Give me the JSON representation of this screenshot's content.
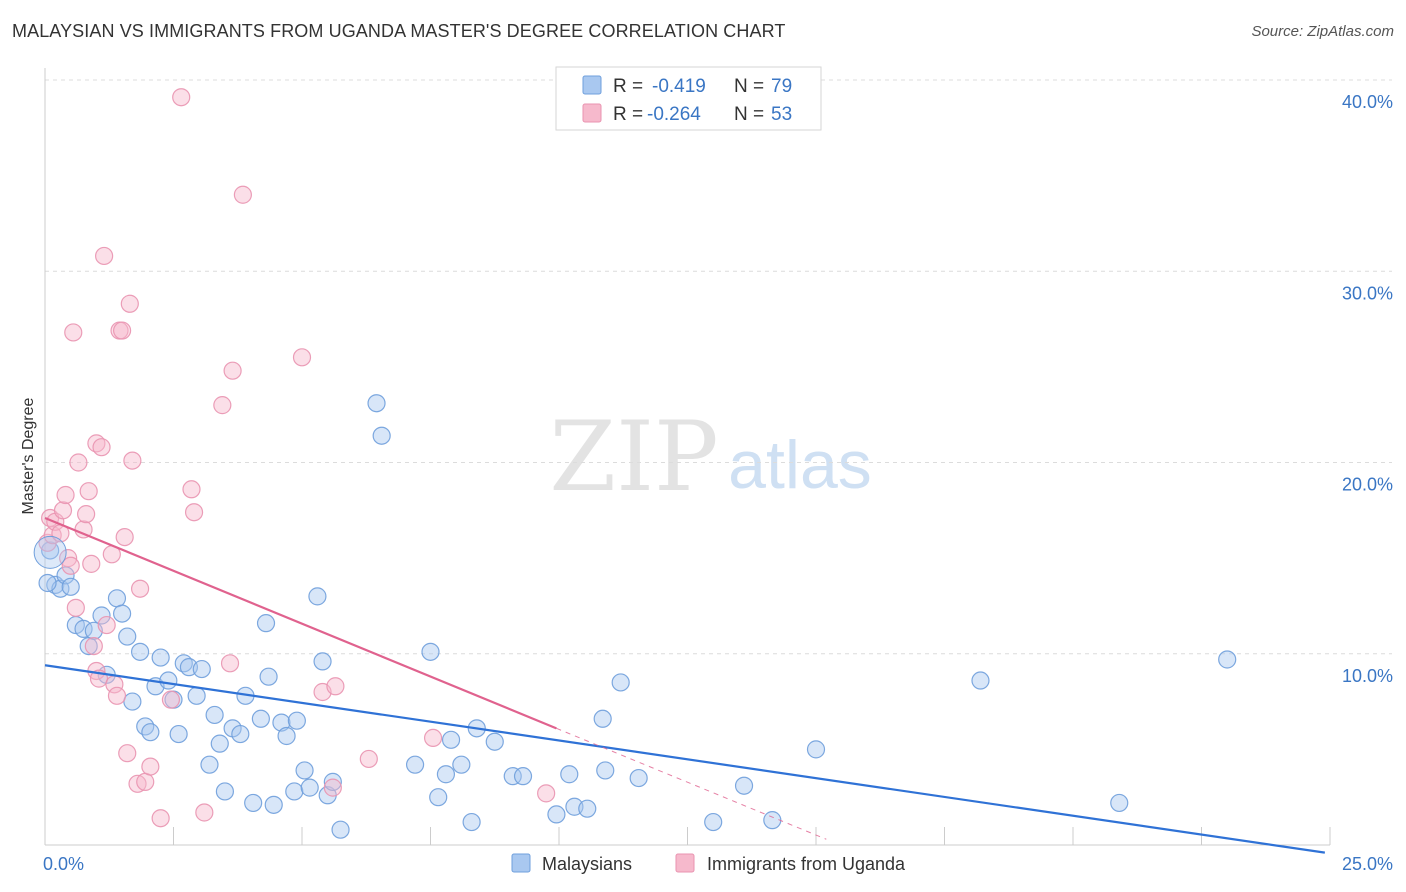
{
  "title": "MALAYSIAN VS IMMIGRANTS FROM UGANDA MASTER'S DEGREE CORRELATION CHART",
  "source": "Source: ZipAtlas.com",
  "watermark": {
    "zip": "ZIP",
    "atlas": "atlas"
  },
  "colors": {
    "blue_fill": "#a9c8f0",
    "blue_stroke": "#6f9fdc",
    "blue_line": "#2f72d6",
    "pink_fill": "#f6b9cc",
    "pink_stroke": "#e993b0",
    "pink_line": "#e0628e",
    "axis_text": "#3a76c4",
    "grid": "#dcdcdc"
  },
  "legend": {
    "r_label": "R =",
    "n_label": "N =",
    "rows": [
      {
        "series": "Malaysians",
        "r": "-0.419",
        "n": "79"
      },
      {
        "series": "Immigrants from Uganda",
        "r": "-0.264",
        "n": "53"
      }
    ]
  },
  "chart_data": {
    "type": "scatter",
    "xlabel": "",
    "ylabel": "Master's Degree",
    "xlim": [
      0,
      25
    ],
    "ylim": [
      0,
      40
    ],
    "x_tick_labels": [
      "0.0%",
      "25.0%"
    ],
    "y_ticks": [
      10,
      20,
      30,
      40
    ],
    "y_tick_labels": [
      "10.0%",
      "20.0%",
      "30.0%",
      "40.0%"
    ],
    "grid": true,
    "series": [
      {
        "name": "Malaysians",
        "color": "#6f9fdc",
        "trend": {
          "x": [
            0,
            24.9
          ],
          "y": [
            9.4,
            -0.4
          ],
          "dashed_to": null
        },
        "points": [
          [
            0.1,
            15.4
          ],
          [
            0.2,
            13.6
          ],
          [
            0.3,
            13.4
          ],
          [
            0.4,
            14.1
          ],
          [
            0.5,
            13.5
          ],
          [
            0.6,
            11.5
          ],
          [
            0.75,
            11.3
          ],
          [
            0.85,
            10.4
          ],
          [
            0.95,
            11.2
          ],
          [
            1.1,
            12.0
          ],
          [
            1.2,
            8.9
          ],
          [
            1.4,
            12.9
          ],
          [
            1.5,
            12.1
          ],
          [
            1.6,
            10.9
          ],
          [
            1.7,
            7.5
          ],
          [
            1.85,
            10.1
          ],
          [
            1.95,
            6.2
          ],
          [
            2.05,
            5.9
          ],
          [
            2.15,
            8.3
          ],
          [
            2.25,
            9.8
          ],
          [
            2.4,
            8.6
          ],
          [
            2.5,
            7.6
          ],
          [
            2.6,
            5.8
          ],
          [
            2.7,
            9.5
          ],
          [
            2.8,
            9.3
          ],
          [
            2.95,
            7.8
          ],
          [
            3.05,
            9.2
          ],
          [
            3.2,
            4.2
          ],
          [
            3.3,
            6.8
          ],
          [
            3.4,
            5.3
          ],
          [
            3.5,
            2.8
          ],
          [
            3.65,
            6.1
          ],
          [
            3.8,
            5.8
          ],
          [
            3.9,
            7.8
          ],
          [
            4.05,
            2.2
          ],
          [
            4.2,
            6.6
          ],
          [
            4.3,
            11.6
          ],
          [
            4.35,
            8.8
          ],
          [
            4.45,
            2.1
          ],
          [
            4.6,
            6.4
          ],
          [
            4.7,
            5.7
          ],
          [
            4.85,
            2.8
          ],
          [
            4.9,
            6.5
          ],
          [
            5.05,
            3.9
          ],
          [
            5.15,
            3.0
          ],
          [
            5.3,
            13.0
          ],
          [
            5.4,
            9.6
          ],
          [
            5.5,
            2.6
          ],
          [
            5.6,
            3.3
          ],
          [
            5.75,
            0.8
          ],
          [
            6.45,
            23.1
          ],
          [
            6.55,
            21.4
          ],
          [
            7.2,
            4.2
          ],
          [
            7.5,
            10.1
          ],
          [
            7.65,
            2.5
          ],
          [
            7.8,
            3.7
          ],
          [
            7.9,
            5.5
          ],
          [
            8.1,
            4.2
          ],
          [
            8.3,
            1.2
          ],
          [
            8.4,
            6.1
          ],
          [
            8.75,
            5.4
          ],
          [
            9.1,
            3.6
          ],
          [
            9.3,
            3.6
          ],
          [
            9.95,
            1.6
          ],
          [
            10.2,
            3.7
          ],
          [
            10.3,
            2.0
          ],
          [
            10.55,
            1.9
          ],
          [
            10.85,
            6.6
          ],
          [
            10.9,
            3.9
          ],
          [
            11.2,
            8.5
          ],
          [
            11.55,
            3.5
          ],
          [
            13.0,
            1.2
          ],
          [
            13.6,
            3.1
          ],
          [
            14.15,
            1.3
          ],
          [
            15.0,
            5.0
          ],
          [
            18.2,
            8.6
          ],
          [
            20.9,
            2.2
          ],
          [
            23.0,
            9.7
          ],
          [
            0.05,
            13.7
          ]
        ]
      },
      {
        "name": "Immigrants from Uganda",
        "color": "#e993b0",
        "trend": {
          "x": [
            0,
            9.95
          ],
          "y": [
            17.1,
            6.1
          ],
          "dashed_to": [
            15.2,
            0.3
          ]
        },
        "points": [
          [
            0.05,
            15.8
          ],
          [
            0.1,
            17.1
          ],
          [
            0.15,
            16.2
          ],
          [
            0.2,
            16.9
          ],
          [
            0.3,
            16.3
          ],
          [
            0.35,
            17.5
          ],
          [
            0.4,
            18.3
          ],
          [
            0.45,
            15.0
          ],
          [
            0.5,
            14.6
          ],
          [
            0.55,
            26.8
          ],
          [
            0.6,
            12.4
          ],
          [
            0.65,
            20.0
          ],
          [
            0.75,
            16.5
          ],
          [
            0.8,
            17.3
          ],
          [
            0.85,
            18.5
          ],
          [
            0.9,
            14.7
          ],
          [
            0.95,
            10.4
          ],
          [
            1.0,
            9.1
          ],
          [
            1.05,
            8.7
          ],
          [
            1.0,
            21.0
          ],
          [
            1.1,
            20.8
          ],
          [
            1.15,
            30.8
          ],
          [
            1.2,
            11.5
          ],
          [
            1.3,
            15.2
          ],
          [
            1.35,
            8.4
          ],
          [
            1.4,
            7.8
          ],
          [
            1.45,
            26.9
          ],
          [
            1.5,
            26.9
          ],
          [
            1.55,
            16.1
          ],
          [
            1.6,
            4.8
          ],
          [
            1.65,
            28.3
          ],
          [
            1.7,
            20.1
          ],
          [
            1.8,
            3.2
          ],
          [
            1.85,
            13.4
          ],
          [
            1.95,
            3.3
          ],
          [
            2.05,
            4.1
          ],
          [
            2.25,
            1.4
          ],
          [
            2.45,
            7.6
          ],
          [
            2.65,
            39.1
          ],
          [
            2.85,
            18.6
          ],
          [
            2.9,
            17.4
          ],
          [
            3.1,
            1.7
          ],
          [
            3.45,
            23.0
          ],
          [
            3.6,
            9.5
          ],
          [
            3.65,
            24.8
          ],
          [
            3.85,
            34.0
          ],
          [
            5.0,
            25.5
          ],
          [
            5.4,
            8.0
          ],
          [
            5.6,
            3.0
          ],
          [
            5.65,
            8.3
          ],
          [
            6.3,
            4.5
          ],
          [
            7.55,
            5.6
          ],
          [
            9.75,
            2.7
          ]
        ]
      }
    ]
  }
}
